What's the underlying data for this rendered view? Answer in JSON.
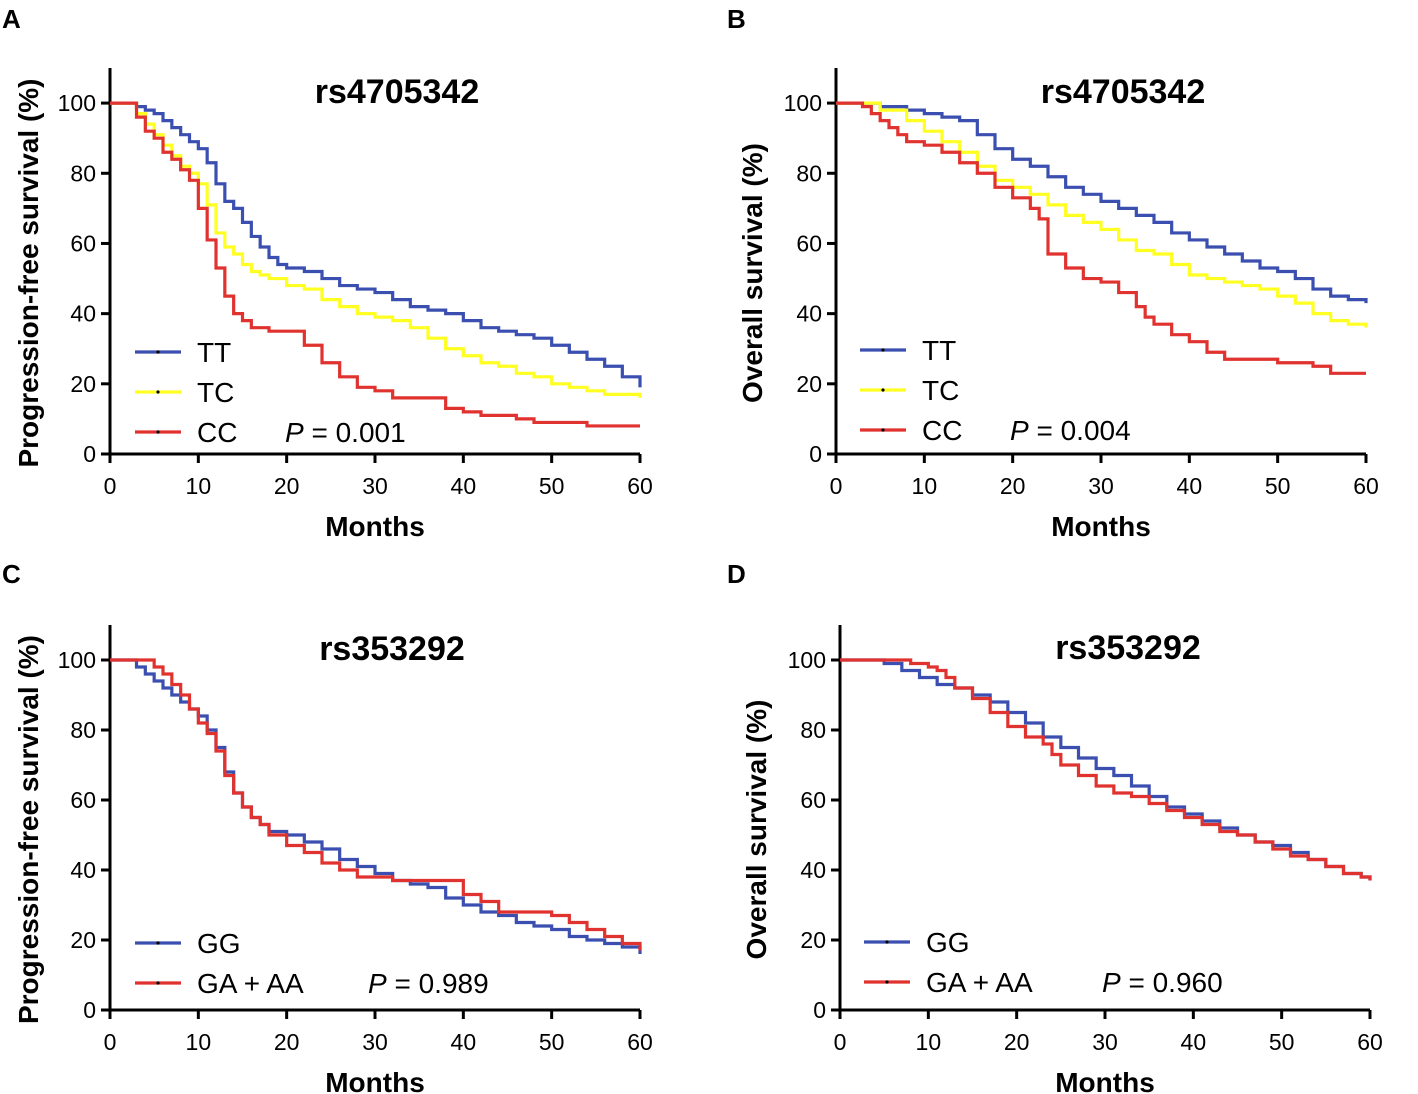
{
  "figure": {
    "x_ticks": [
      "0",
      "10",
      "20",
      "30",
      "40",
      "50",
      "60"
    ],
    "y_ticks": [
      "0",
      "20",
      "40",
      "60",
      "80",
      "100"
    ]
  },
  "colors": {
    "blue": "#3b4fb0",
    "yellow": "#ffff22",
    "red": "#e0322f",
    "axis": "#000000"
  },
  "chart_data": [
    {
      "type": "line",
      "panel_label": "A",
      "title": "rs4705342",
      "xlabel": "Months",
      "ylabel": "Progression-free survival (%)",
      "xlim": [
        0,
        60
      ],
      "ylim": [
        0,
        110
      ],
      "p_label": "P",
      "p_value": " = 0.001",
      "series": [
        {
          "name": "TT",
          "color": "#3b4fb0",
          "x": [
            0,
            2,
            3,
            4,
            5,
            6,
            7,
            8,
            9,
            10,
            11,
            12,
            13,
            14,
            15,
            16,
            17,
            18,
            19,
            20,
            22,
            24,
            26,
            28,
            30,
            32,
            34,
            36,
            38,
            40,
            42,
            44,
            46,
            48,
            50,
            52,
            54,
            56,
            58,
            60
          ],
          "y": [
            100,
            100,
            99,
            98,
            97,
            95,
            93,
            91,
            89,
            87,
            83,
            77,
            72,
            70,
            66,
            62,
            59,
            56,
            54,
            53,
            52,
            50,
            48,
            47,
            46,
            44,
            42,
            41,
            40,
            38,
            36,
            35,
            34,
            33,
            31,
            29,
            27,
            25,
            22,
            19
          ]
        },
        {
          "name": "TC",
          "color": "#ffff22",
          "x": [
            0,
            2,
            3,
            4,
            5,
            6,
            7,
            8,
            9,
            10,
            11,
            12,
            13,
            14,
            15,
            16,
            17,
            18,
            20,
            22,
            24,
            26,
            28,
            30,
            32,
            34,
            36,
            38,
            40,
            42,
            44,
            46,
            48,
            50,
            52,
            54,
            56,
            58,
            60
          ],
          "y": [
            100,
            100,
            97,
            94,
            91,
            88,
            85,
            82,
            80,
            77,
            71,
            63,
            59,
            57,
            54,
            52,
            51,
            50,
            48,
            47,
            44,
            42,
            40,
            39,
            38,
            36,
            33,
            30,
            28,
            26,
            25,
            23,
            22,
            20,
            19,
            18,
            17,
            17,
            16
          ]
        },
        {
          "name": "CC",
          "color": "#e0322f",
          "x": [
            0,
            2,
            3,
            4,
            5,
            6,
            7,
            8,
            9,
            10,
            11,
            12,
            13,
            14,
            15,
            16,
            18,
            20,
            22,
            24,
            26,
            28,
            30,
            32,
            34,
            36,
            38,
            40,
            42,
            44,
            46,
            48,
            50,
            52,
            54,
            56,
            58,
            60
          ],
          "y": [
            100,
            100,
            96,
            92,
            90,
            86,
            84,
            81,
            78,
            70,
            61,
            53,
            45,
            40,
            38,
            36,
            35,
            35,
            31,
            26,
            22,
            19,
            18,
            16,
            16,
            16,
            13,
            12,
            11,
            11,
            10,
            9,
            9,
            9,
            8,
            8,
            8,
            8
          ]
        }
      ]
    },
    {
      "type": "line",
      "panel_label": "B",
      "title": "rs4705342",
      "xlabel": "Months",
      "ylabel": "Overall survival (%)",
      "xlim": [
        0,
        60
      ],
      "ylim": [
        0,
        110
      ],
      "p_label": "P",
      "p_value": " = 0.004",
      "series": [
        {
          "name": "TT",
          "color": "#3b4fb0",
          "x": [
            0,
            3,
            5,
            8,
            10,
            12,
            14,
            16,
            18,
            20,
            22,
            24,
            26,
            28,
            30,
            32,
            34,
            36,
            38,
            40,
            42,
            44,
            46,
            48,
            50,
            52,
            54,
            56,
            58,
            60
          ],
          "y": [
            100,
            100,
            99,
            98,
            97,
            96,
            95,
            91,
            87,
            84,
            82,
            79,
            76,
            74,
            72,
            70,
            68,
            66,
            63,
            61,
            59,
            57,
            55,
            53,
            52,
            50,
            47,
            45,
            44,
            43
          ]
        },
        {
          "name": "TC",
          "color": "#ffff22",
          "x": [
            0,
            3,
            5,
            8,
            10,
            12,
            14,
            16,
            18,
            20,
            22,
            24,
            26,
            28,
            30,
            32,
            34,
            36,
            38,
            40,
            42,
            44,
            46,
            48,
            50,
            52,
            54,
            56,
            58,
            60
          ],
          "y": [
            100,
            100,
            98,
            95,
            92,
            89,
            86,
            82,
            78,
            76,
            74,
            71,
            68,
            66,
            64,
            61,
            58,
            57,
            54,
            51,
            50,
            49,
            48,
            47,
            45,
            43,
            40,
            38,
            37,
            36
          ]
        },
        {
          "name": "CC",
          "color": "#e0322f",
          "x": [
            0,
            3,
            4,
            5,
            6,
            7,
            8,
            10,
            12,
            14,
            16,
            18,
            20,
            22,
            23,
            24,
            26,
            28,
            30,
            32,
            34,
            35,
            36,
            38,
            40,
            42,
            44,
            46,
            48,
            50,
            52,
            54,
            56,
            58,
            60
          ],
          "y": [
            100,
            99,
            97,
            95,
            93,
            91,
            89,
            88,
            86,
            83,
            80,
            76,
            73,
            70,
            67,
            57,
            53,
            50,
            49,
            46,
            42,
            39,
            37,
            34,
            32,
            29,
            27,
            27,
            27,
            26,
            26,
            25,
            23,
            23,
            23
          ]
        }
      ]
    },
    {
      "type": "line",
      "panel_label": "C",
      "title": "rs353292",
      "xlabel": "Months",
      "ylabel": "Progression-free survival (%)",
      "xlim": [
        0,
        60
      ],
      "ylim": [
        0,
        110
      ],
      "p_label": "P",
      "p_value": " = 0.989",
      "series": [
        {
          "name": "GG",
          "color": "#3b4fb0",
          "x": [
            0,
            2,
            3,
            4,
            5,
            6,
            7,
            8,
            9,
            10,
            11,
            12,
            13,
            14,
            15,
            16,
            17,
            18,
            20,
            22,
            24,
            26,
            28,
            30,
            32,
            34,
            36,
            38,
            40,
            42,
            44,
            46,
            48,
            50,
            52,
            54,
            56,
            58,
            60
          ],
          "y": [
            100,
            100,
            98,
            96,
            94,
            92,
            90,
            88,
            86,
            84,
            80,
            75,
            68,
            62,
            58,
            55,
            53,
            51,
            50,
            48,
            46,
            43,
            41,
            39,
            37,
            36,
            35,
            32,
            30,
            28,
            27,
            25,
            24,
            23,
            21,
            20,
            19,
            18,
            16
          ]
        },
        {
          "name": "GA + AA",
          "color": "#e0322f",
          "x": [
            0,
            2,
            3,
            4,
            5,
            6,
            7,
            8,
            9,
            10,
            11,
            12,
            13,
            14,
            15,
            16,
            17,
            18,
            20,
            22,
            24,
            26,
            28,
            30,
            32,
            34,
            36,
            38,
            40,
            42,
            44,
            46,
            48,
            50,
            52,
            54,
            56,
            58,
            60
          ],
          "y": [
            100,
            100,
            100,
            100,
            98,
            96,
            93,
            90,
            86,
            82,
            79,
            74,
            67,
            62,
            58,
            55,
            53,
            50,
            47,
            45,
            42,
            40,
            38,
            38,
            37,
            37,
            37,
            37,
            33,
            31,
            28,
            28,
            28,
            27,
            25,
            23,
            21,
            19,
            17
          ]
        }
      ]
    },
    {
      "type": "line",
      "panel_label": "D",
      "title": "rs353292",
      "xlabel": "Months",
      "ylabel": "Overall survival (%)",
      "xlim": [
        0,
        60
      ],
      "ylim": [
        0,
        110
      ],
      "p_label": "P",
      "p_value": " = 0.960",
      "series": [
        {
          "name": "GG",
          "color": "#3b4fb0",
          "x": [
            0,
            3,
            5,
            7,
            9,
            11,
            13,
            15,
            17,
            19,
            21,
            23,
            25,
            27,
            29,
            31,
            33,
            35,
            37,
            39,
            41,
            43,
            45,
            47,
            49,
            51,
            53,
            55,
            57,
            59,
            60
          ],
          "y": [
            100,
            100,
            99,
            97,
            95,
            93,
            92,
            90,
            88,
            85,
            82,
            78,
            75,
            72,
            69,
            67,
            64,
            61,
            58,
            56,
            54,
            52,
            50,
            48,
            47,
            45,
            43,
            41,
            39,
            38,
            37
          ]
        },
        {
          "name": "GA + AA",
          "color": "#e0322f",
          "x": [
            0,
            3,
            5,
            6,
            7,
            8,
            9,
            10,
            11,
            12,
            13,
            15,
            17,
            19,
            21,
            23,
            24,
            25,
            27,
            29,
            31,
            33,
            35,
            37,
            39,
            41,
            43,
            45,
            47,
            49,
            51,
            53,
            55,
            57,
            59,
            60
          ],
          "y": [
            100,
            100,
            100,
            100,
            100,
            99,
            99,
            98,
            97,
            95,
            92,
            89,
            85,
            81,
            78,
            76,
            73,
            70,
            67,
            64,
            62,
            61,
            59,
            57,
            55,
            53,
            51,
            50,
            48,
            46,
            44,
            43,
            41,
            39,
            38,
            37
          ]
        }
      ]
    }
  ]
}
